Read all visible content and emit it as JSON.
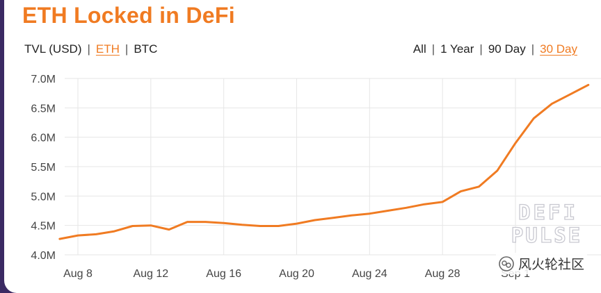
{
  "header": {
    "title": "ETH Locked in DeFi"
  },
  "unit_options": [
    {
      "label": "TVL (USD)",
      "active": false
    },
    {
      "label": "ETH",
      "active": true
    },
    {
      "label": "BTC",
      "active": false
    }
  ],
  "range_options": [
    {
      "label": "All",
      "active": false
    },
    {
      "label": "1 Year",
      "active": false
    },
    {
      "label": "90 Day",
      "active": false
    },
    {
      "label": "30 Day",
      "active": true
    }
  ],
  "separator": "|",
  "watermark": {
    "logo_line1": "DEFI",
    "logo_line2": "PULSE",
    "social_text": "风火轮社区"
  },
  "colors": {
    "accent": "#f07b22",
    "line": "#f07b22",
    "grid": "#e6e6e6"
  },
  "chart_data": {
    "type": "line",
    "title": "ETH Locked in DeFi",
    "xlabel": "",
    "ylabel": "",
    "ylim": [
      4.0,
      7.0
    ],
    "y_ticks": [
      4.0,
      4.5,
      5.0,
      5.5,
      6.0,
      6.5,
      7.0
    ],
    "y_tick_labels": [
      "4.0M",
      "4.5M",
      "5.0M",
      "5.5M",
      "6.0M",
      "6.5M",
      "7.0M"
    ],
    "x_tick_labels": [
      "Aug 8",
      "Aug 12",
      "Aug 16",
      "Aug 20",
      "Aug 24",
      "Aug 28",
      "Sep 1"
    ],
    "x_tick_days": [
      8,
      12,
      16,
      20,
      24,
      28,
      32
    ],
    "grid": true,
    "series": [
      {
        "x": [
          7,
          8,
          9,
          10,
          11,
          12,
          13,
          14,
          15,
          16,
          17,
          18,
          19,
          20,
          21,
          22,
          23,
          24,
          25,
          26,
          27,
          28,
          29,
          30,
          31,
          32,
          33,
          34,
          35,
          36
        ],
        "y": [
          4.27,
          4.33,
          4.35,
          4.4,
          4.49,
          4.5,
          4.43,
          4.56,
          4.56,
          4.54,
          4.51,
          4.49,
          4.49,
          4.53,
          4.59,
          4.63,
          4.67,
          4.7,
          4.75,
          4.8,
          4.86,
          4.9,
          5.08,
          5.16,
          5.43,
          5.9,
          6.32,
          6.57,
          6.73,
          6.89
        ]
      }
    ]
  }
}
